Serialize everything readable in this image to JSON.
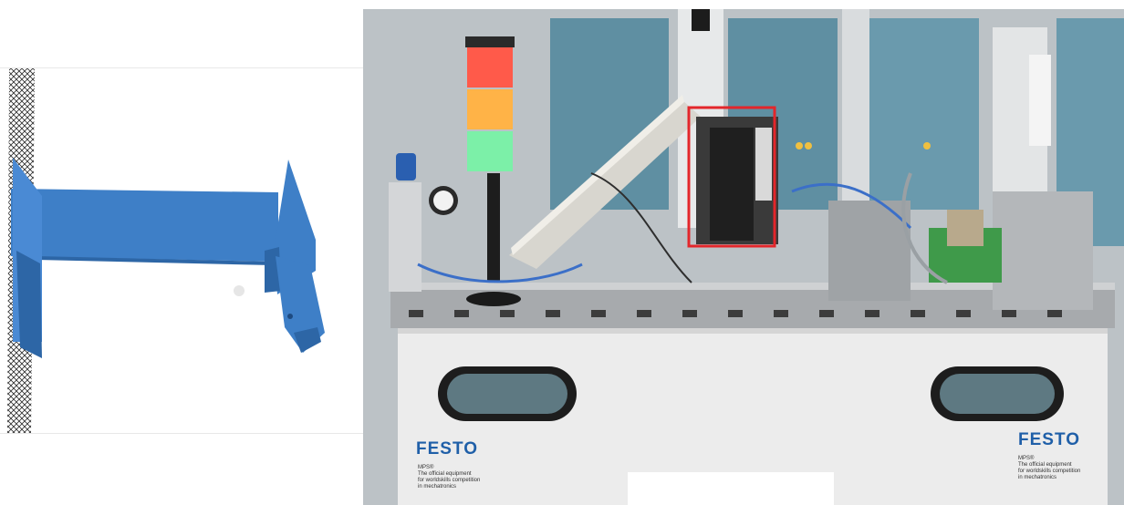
{
  "left_panel": {
    "object_color": "#3e7fc7",
    "object_dark": "#2d66a6",
    "object_light": "#5c9ae0",
    "mesh_color": "#2b2b2b"
  },
  "right_panel": {
    "highlight_color": "#e3262b",
    "stack_light_colors": [
      "#ff5a4a",
      "#ffb347",
      "#7cf0a8"
    ],
    "festo_logo_left": "FESTO",
    "festo_logo_right": "FESTO",
    "caption_left": "MPS®\nThe official equipment\nfor worldskills competition\nin mechatronics",
    "caption_right": "MPS®\nThe official equipment\nfor worldskills competition\nin mechatronics"
  }
}
